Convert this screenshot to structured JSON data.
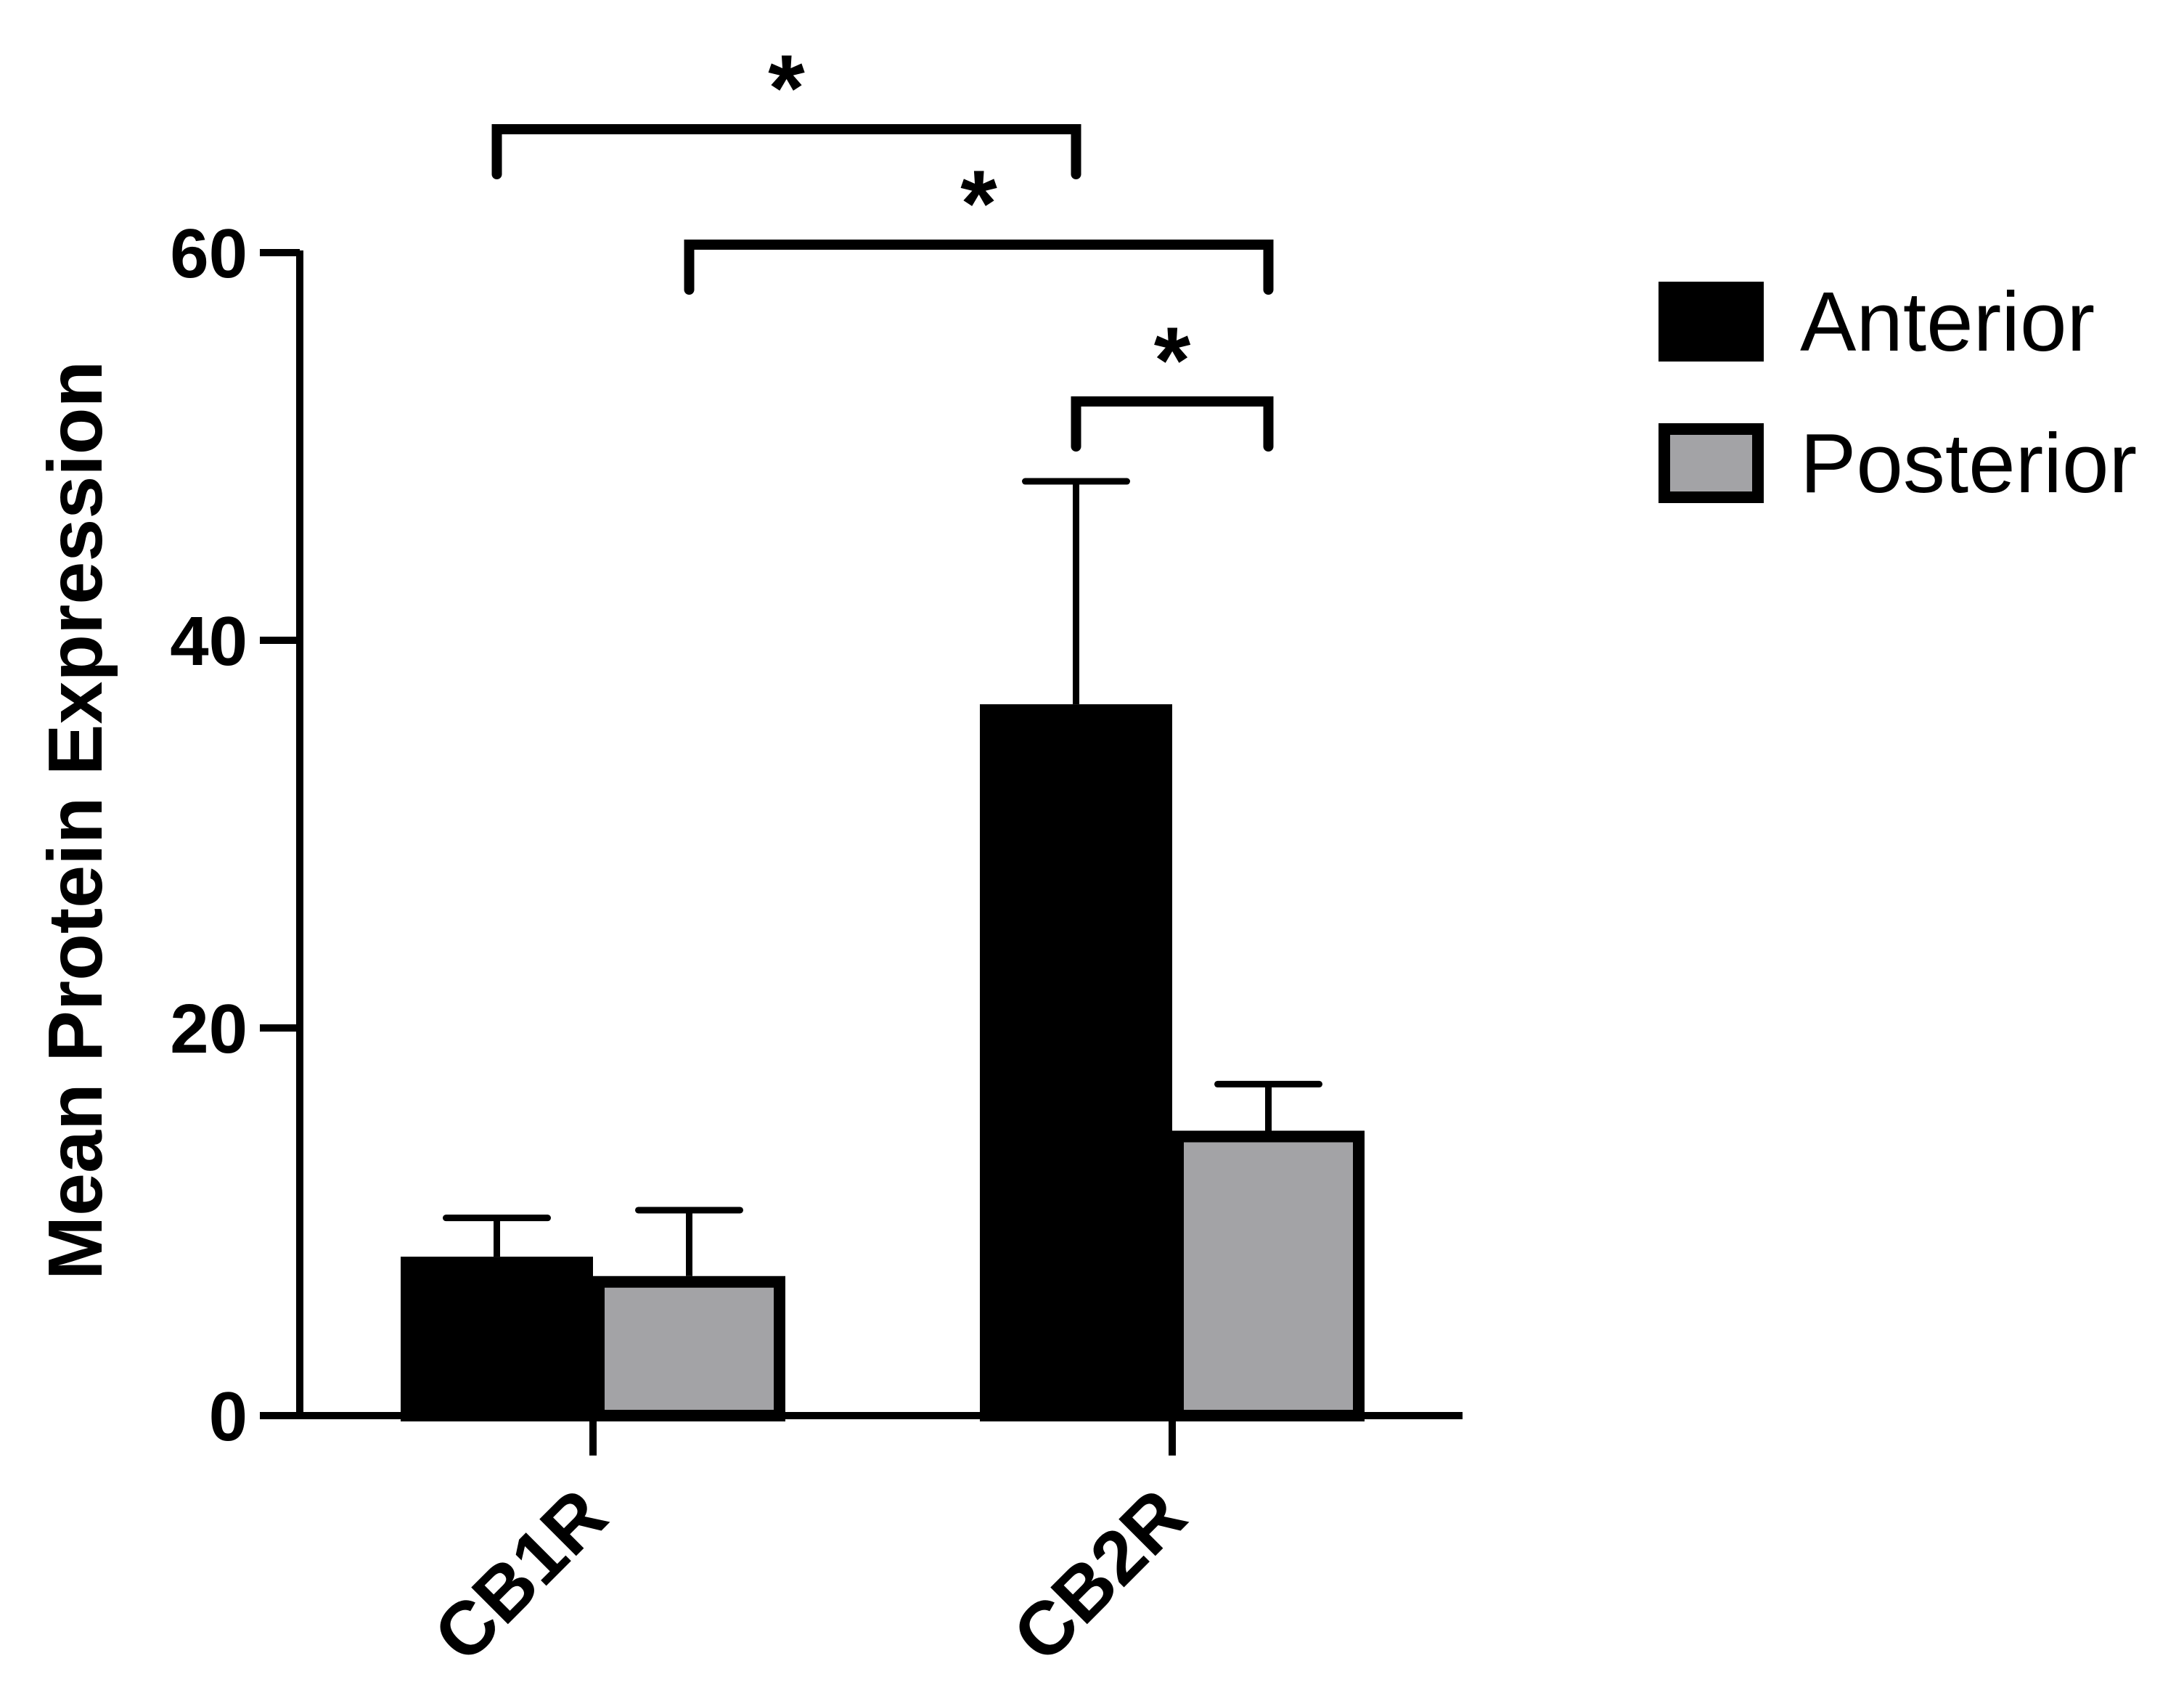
{
  "chart_data": {
    "type": "bar",
    "title": "",
    "ylabel": "Mean Protein Expression",
    "xlabel": "",
    "ylim": [
      0,
      60
    ],
    "yticks": [
      0,
      20,
      40,
      60
    ],
    "categories": [
      "CB1R",
      "CB2R"
    ],
    "series": [
      {
        "name": "Anterior",
        "color": "#000000",
        "values": [
          8.2,
          36.7
        ],
        "error_upper": [
          10.2,
          48.2
        ]
      },
      {
        "name": "Posterior",
        "color": "#a3a3a6",
        "values": [
          7.2,
          14.7
        ],
        "error_upper": [
          10.6,
          17.1
        ]
      }
    ],
    "legend_position": "top-right",
    "grid": false,
    "significance": [
      {
        "from": "CB1R-Anterior",
        "to": "CB2R-Anterior",
        "label": "*"
      },
      {
        "from": "CB1R-Posterior",
        "to": "CB2R-Posterior",
        "label": "*"
      },
      {
        "from": "CB2R-Anterior",
        "to": "CB2R-Posterior",
        "label": "*"
      }
    ]
  }
}
